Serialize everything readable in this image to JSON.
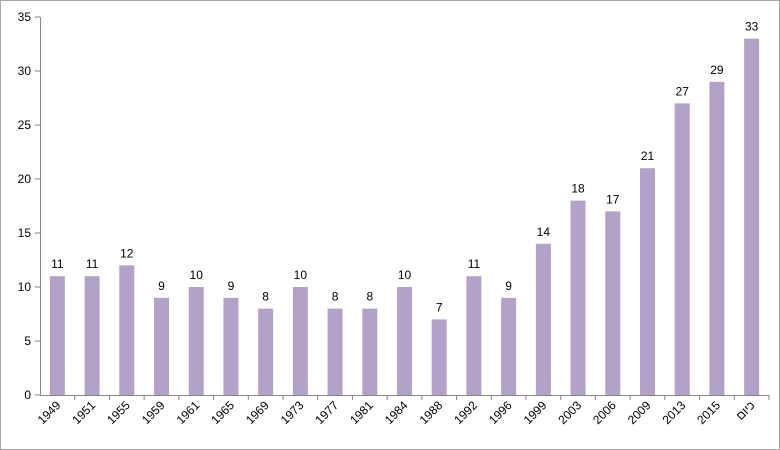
{
  "chart_data": {
    "type": "bar",
    "categories": [
      "1949",
      "1951",
      "1955",
      "1959",
      "1961",
      "1965",
      "1969",
      "1973",
      "1977",
      "1981",
      "1984",
      "1988",
      "1992",
      "1996",
      "1999",
      "2003",
      "2006",
      "2009",
      "2013",
      "2015",
      "כיום"
    ],
    "values": [
      11,
      11,
      12,
      9,
      10,
      9,
      8,
      10,
      8,
      8,
      10,
      7,
      11,
      9,
      14,
      18,
      17,
      21,
      27,
      29,
      33
    ],
    "y_ticks": [
      "0",
      "5",
      "10",
      "15",
      "20",
      "25",
      "30",
      "35"
    ],
    "ylim": [
      0,
      35
    ],
    "grid": false,
    "legend": "none",
    "data_labels": true,
    "bar_color": "#b3a2c7",
    "axis_color": "#868686",
    "title": "",
    "xlabel": "",
    "ylabel": ""
  }
}
